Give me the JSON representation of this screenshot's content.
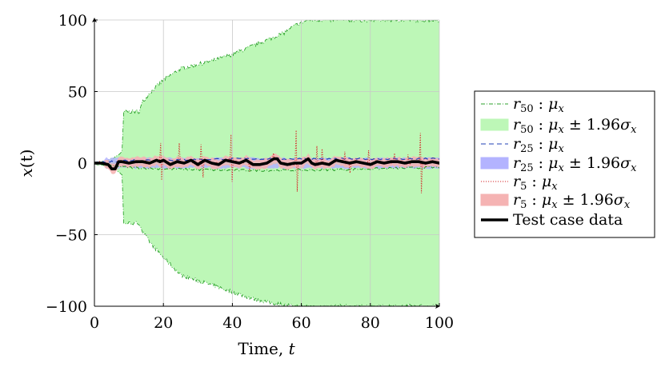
{
  "chart_data": {
    "type": "area",
    "xlabel": "Time, t",
    "ylabel": "x(t)",
    "xlim": [
      0,
      100
    ],
    "ylim": [
      -100,
      100
    ],
    "xticks": [
      0,
      20,
      40,
      60,
      80,
      100
    ],
    "yticks": [
      -100,
      -50,
      0,
      50,
      100
    ],
    "grid": true,
    "legend_position": "outside-right",
    "series": [
      {
        "name": "r50 : μx",
        "style": "dash-dot",
        "color": "#2ca02c",
        "x": [
          0,
          5,
          10,
          20,
          40,
          60,
          80,
          100
        ],
        "values": [
          -1,
          -2,
          -3,
          -4,
          -5,
          -5,
          -4,
          -3
        ]
      },
      {
        "name": "r50 : μx ± 1.96σx",
        "style": "band",
        "color": "#bdf7b7",
        "x": [
          0,
          2,
          4,
          6,
          8,
          8.5,
          13,
          14,
          16,
          20,
          25,
          30,
          35,
          40,
          45,
          50,
          55,
          58,
          62,
          65,
          100
        ],
        "upper": [
          0,
          0.5,
          2,
          4,
          8,
          36,
          36,
          43,
          49,
          58,
          66,
          69,
          72,
          76,
          81,
          86,
          91,
          96,
          100,
          100,
          100
        ],
        "lower": [
          0,
          -0.5,
          -2,
          -4,
          -8,
          -42,
          -42,
          -48,
          -55,
          -66,
          -78,
          -82,
          -86,
          -90,
          -94,
          -97,
          -99,
          -100,
          -100,
          -100,
          -100
        ]
      },
      {
        "name": "r25 : μx",
        "style": "dashed",
        "color": "#1f3fb4",
        "x": [
          0,
          5,
          10,
          20,
          40,
          60,
          80,
          100
        ],
        "values": [
          0,
          1,
          2,
          2,
          3,
          3,
          3,
          3
        ]
      },
      {
        "name": "r25 : μx ± 1.96σx",
        "style": "band",
        "color": "#b3b3ff"
      },
      {
        "name": "r5 : μx",
        "style": "dotted",
        "color": "#d62728"
      },
      {
        "name": "r5 : μx ± 1.96σx",
        "style": "band",
        "color": "#f5b3b3"
      },
      {
        "name": "Test case data",
        "style": "solid-thick",
        "color": "#000000",
        "x": [
          0,
          2,
          4,
          5,
          6,
          7,
          8,
          10,
          12,
          14,
          16,
          18,
          19,
          20,
          22,
          24,
          26,
          28,
          30,
          32,
          34,
          36,
          38,
          40,
          42,
          44,
          46,
          48,
          50,
          52,
          53,
          54,
          56,
          58,
          60,
          62,
          63,
          64,
          66,
          68,
          70,
          72,
          74,
          76,
          78,
          80,
          82,
          84,
          86,
          88,
          90,
          92,
          94,
          96,
          98,
          100
        ],
        "values": [
          0,
          0,
          -1,
          -4,
          -4,
          1,
          1,
          0,
          1,
          1,
          0,
          2,
          1,
          2,
          -1,
          1,
          0,
          2,
          -1,
          2,
          0,
          -1,
          2,
          1,
          0,
          2,
          -1,
          -1,
          0,
          3,
          3,
          0,
          -1,
          0,
          0,
          3,
          0,
          -1,
          0,
          -1,
          2,
          1,
          0,
          1,
          0,
          -1,
          1,
          0,
          1,
          1,
          0,
          1,
          1,
          0,
          1,
          0
        ]
      }
    ]
  },
  "legend": {
    "items": [
      {
        "base": "r",
        "sub": "50",
        "sep": " : ",
        "mu": "μ",
        "musub": "x",
        "tail": ""
      },
      {
        "base": "r",
        "sub": "50",
        "sep": " : ",
        "mu": "μ",
        "musub": "x",
        "tail": " ± 1.96",
        "sigma": "σ",
        "sigsub": "x"
      },
      {
        "base": "r",
        "sub": "25",
        "sep": " : ",
        "mu": "μ",
        "musub": "x",
        "tail": ""
      },
      {
        "base": "r",
        "sub": "25",
        "sep": " : ",
        "mu": "μ",
        "musub": "x",
        "tail": " ± 1.96",
        "sigma": "σ",
        "sigsub": "x"
      },
      {
        "base": "r",
        "sub": "5",
        "sep": " : ",
        "mu": "μ",
        "musub": "x",
        "tail": ""
      },
      {
        "base": "r",
        "sub": "5",
        "sep": " : ",
        "mu": "μ",
        "musub": "x",
        "tail": " ± 1.96",
        "sigma": "σ",
        "sigsub": "x"
      },
      {
        "plain": "Test case data"
      }
    ]
  }
}
